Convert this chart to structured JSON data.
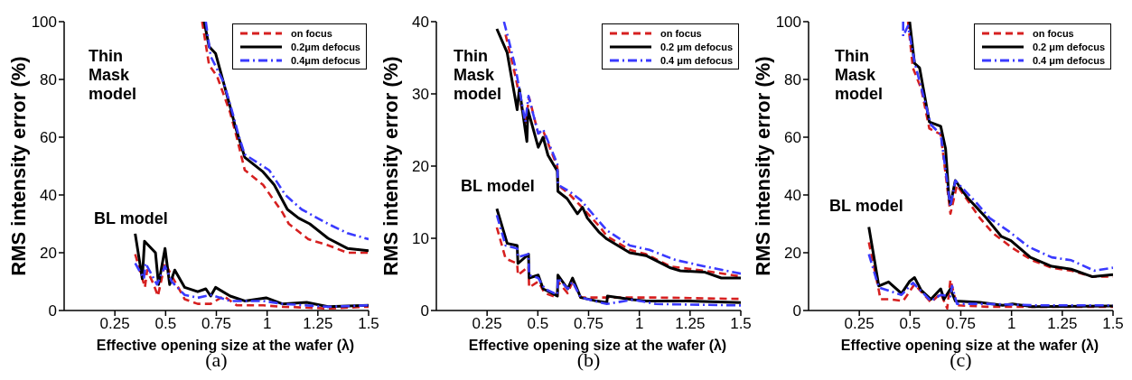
{
  "chart_data": [
    {
      "type": "line",
      "xlabel": "Effective opening size at the wafer (λ)",
      "ylabel": "RMS intensity error (%)",
      "xlim": [
        0,
        1.5
      ],
      "xticks": [
        0.25,
        0.5,
        0.75,
        1,
        1.25,
        1.5
      ],
      "ylim": [
        0,
        100
      ],
      "yticks": [
        0,
        20,
        40,
        60,
        80,
        100
      ],
      "legend": "top right",
      "annotations": [
        "Thin\nMask\nmodel",
        "BL model",
        "(a)"
      ],
      "series": [
        {
          "name": "on focus",
          "color": "#d62020",
          "line_style": "dashed",
          "x": [
            0.68,
            0.714,
            0.754,
            0.818,
            0.85,
            0.89,
            0.98,
            1.075,
            1.107,
            1.203,
            1.3,
            1.395,
            1.5
          ],
          "values": [
            100,
            85,
            81,
            68.5,
            60,
            48.6,
            43.5,
            34,
            30,
            24.7,
            22.6,
            20,
            20
          ]
        },
        {
          "name": "0.2μm defocus",
          "color": "#000000",
          "line_style": "solid",
          "x": [
            0.69,
            0.714,
            0.746,
            0.818,
            0.842,
            0.89,
            0.98,
            1.035,
            1.1,
            1.155,
            1.21,
            1.3,
            1.395,
            1.5
          ],
          "values": [
            100,
            91.4,
            89,
            70.5,
            64,
            53,
            48,
            43.5,
            35,
            32,
            30,
            25,
            21.5,
            20.7
          ]
        },
        {
          "name": "0.4μm defocus",
          "color": "#3a3aff",
          "line_style": "dashdot",
          "x": [
            0.698,
            0.722,
            0.786,
            0.834,
            0.858,
            0.89,
            1.01,
            1.09,
            1.17,
            1.3,
            1.395,
            1.5
          ],
          "values": [
            100,
            88,
            79,
            67.4,
            61,
            54,
            48.6,
            40,
            35,
            30,
            26.8,
            24.7
          ]
        },
        {
          "color": "#d62020",
          "line_style": "dashed",
          "x": [
            0.35,
            0.398,
            0.409,
            0.441,
            0.462,
            0.497,
            0.538,
            0.594,
            0.658,
            0.722,
            0.786,
            0.85,
            0.98,
            1.075,
            1.3,
            1.5
          ],
          "values": [
            19.5,
            8,
            14,
            9,
            5,
            16.4,
            11,
            3.9,
            2.3,
            2.3,
            5,
            1.8,
            1.8,
            1.3,
            0.7,
            1.3
          ]
        },
        {
          "color": "#000000",
          "line_style": "solid",
          "x": [
            0.35,
            0.385,
            0.396,
            0.45,
            0.465,
            0.497,
            0.52,
            0.545,
            0.594,
            0.658,
            0.698,
            0.722,
            0.746,
            0.818,
            0.89,
            0.995,
            1.075,
            1.195,
            1.3,
            1.5
          ],
          "values": [
            26.6,
            11,
            24,
            20,
            9,
            21.5,
            9,
            14,
            8,
            6.5,
            7.5,
            5,
            8,
            5,
            3.3,
            4.4,
            2.3,
            2.8,
            1.3,
            1.8
          ]
        },
        {
          "color": "#3a3aff",
          "line_style": "dashdot",
          "x": [
            0.35,
            0.393,
            0.401,
            0.457,
            0.497,
            0.53,
            0.594,
            0.658,
            0.722,
            0.818,
            0.98,
            1.075,
            1.3,
            1.5
          ],
          "values": [
            16.4,
            11,
            16.4,
            9,
            15.3,
            10,
            5.4,
            4.4,
            5.4,
            3.3,
            3.3,
            2.3,
            1.3,
            1.8
          ]
        }
      ]
    },
    {
      "type": "line",
      "xlabel": "Effective opening size at the wafer (λ)",
      "ylabel": "RMS intensity error (%)",
      "xlim": [
        0,
        1.5
      ],
      "xticks": [
        0.25,
        0.5,
        0.75,
        1,
        1.25,
        1.5
      ],
      "ylim": [
        0,
        40
      ],
      "yticks": [
        0,
        10,
        20,
        30,
        40
      ],
      "legend": "top right",
      "annotations": [
        "Thin\nMask\nmodel",
        "BL model",
        "(b)"
      ],
      "series": [
        {
          "name": "on focus",
          "color": "#d62020",
          "line_style": "dashed",
          "x": [
            0.341,
            0.39,
            0.414,
            0.438,
            0.457,
            0.502,
            0.526,
            0.596,
            0.599,
            0.655,
            0.711,
            0.808,
            0.84,
            0.953,
            1.033,
            1.154,
            1.323,
            1.5
          ],
          "values": [
            38.2,
            32.4,
            29,
            25.7,
            29.5,
            24.5,
            24.9,
            19.9,
            17.4,
            16.1,
            14.5,
            11.5,
            10.3,
            8.4,
            7.8,
            6.1,
            5.5,
            4.7
          ]
        },
        {
          "name": "0.2 μm defocus",
          "color": "#000000",
          "line_style": "solid",
          "x": [
            0.298,
            0.349,
            0.398,
            0.409,
            0.446,
            0.451,
            0.502,
            0.526,
            0.55,
            0.596,
            0.599,
            0.644,
            0.695,
            0.72,
            0.744,
            0.8,
            0.84,
            0.953,
            1.033,
            1.154,
            1.202,
            1.323,
            1.404,
            1.5
          ],
          "values": [
            39,
            35.7,
            27.8,
            30.7,
            23.4,
            27.8,
            22.6,
            24,
            21.5,
            19.3,
            16.5,
            15.5,
            13.4,
            14.3,
            12.8,
            10.9,
            9.9,
            8,
            7.6,
            5.9,
            5.5,
            5.3,
            4.5,
            4.5
          ]
        },
        {
          "name": "0.4 μm defocus",
          "color": "#3a3aff",
          "line_style": "dashdot",
          "x": [
            0.333,
            0.357,
            0.39,
            0.406,
            0.438,
            0.454,
            0.502,
            0.526,
            0.596,
            0.599,
            0.655,
            0.711,
            0.84,
            0.953,
            1.049,
            1.178,
            1.323,
            1.5
          ],
          "values": [
            40,
            37.4,
            33.6,
            31.1,
            26.1,
            29.7,
            24.5,
            25.1,
            20.3,
            17.4,
            16.5,
            15.3,
            11.1,
            9,
            8.4,
            7,
            6.1,
            5.1
          ]
        },
        {
          "color": "#d62020",
          "line_style": "dashed",
          "x": [
            0.298,
            0.341,
            0.398,
            0.402,
            0.454,
            0.457,
            0.502,
            0.534,
            0.596,
            0.599,
            0.647,
            0.671,
            0.711,
            0.84,
            1.082,
            1.5
          ],
          "values": [
            11.5,
            7.2,
            6.5,
            4.9,
            6.1,
            3.2,
            4,
            2.4,
            1.8,
            4,
            2.4,
            4,
            1.8,
            1.8,
            1.8,
            1.6
          ]
        },
        {
          "color": "#000000",
          "line_style": "solid",
          "x": [
            0.298,
            0.349,
            0.398,
            0.402,
            0.454,
            0.457,
            0.502,
            0.526,
            0.596,
            0.599,
            0.647,
            0.671,
            0.711,
            0.792,
            0.84,
            0.843,
            0.969,
            1.033,
            1.243,
            1.5
          ],
          "values": [
            14.1,
            9.3,
            9,
            6.5,
            7.8,
            4.5,
            4.9,
            3,
            2,
            4.9,
            3,
            4.5,
            1.8,
            1.3,
            1.1,
            2,
            1.5,
            1.3,
            1.3,
            1.1
          ]
        },
        {
          "color": "#3a3aff",
          "line_style": "dashdot",
          "x": [
            0.298,
            0.341,
            0.398,
            0.402,
            0.454,
            0.457,
            0.502,
            0.534,
            0.596,
            0.599,
            0.647,
            0.671,
            0.711,
            0.84,
            0.969,
            1.082,
            1.5
          ],
          "values": [
            13.2,
            9,
            8.6,
            7.4,
            7.8,
            4.9,
            4.5,
            3,
            2.2,
            4.5,
            3,
            4,
            1.8,
            0.9,
            1.5,
            0.9,
            0.7
          ]
        }
      ]
    },
    {
      "type": "line",
      "xlabel": "Effective opening size at the wafer (λ)",
      "ylabel": "RMS intensity error (%)",
      "xlim": [
        0,
        1.5
      ],
      "xticks": [
        0.25,
        0.5,
        0.75,
        1,
        1.25,
        1.5
      ],
      "ylim": [
        0,
        100
      ],
      "yticks": [
        0,
        20,
        40,
        60,
        80,
        100
      ],
      "legend": "top right",
      "annotations": [
        "Thin\nMask\nmodel",
        "BL model",
        "(c)"
      ],
      "series": [
        {
          "name": "on focus",
          "color": "#d62020",
          "line_style": "dashed",
          "x": [
            0.49,
            0.514,
            0.555,
            0.595,
            0.651,
            0.699,
            0.731,
            0.844,
            0.908,
            1.005,
            1.101,
            1.198,
            1.294,
            1.399,
            1.5
          ],
          "values": [
            100,
            84,
            76.8,
            63,
            61,
            33.5,
            43.4,
            32,
            26.8,
            21.6,
            17.4,
            14.8,
            13.8,
            11.7,
            11.7
          ]
        },
        {
          "name": "0.2 μm defocus",
          "color": "#000000",
          "line_style": "solid",
          "x": [
            0.498,
            0.522,
            0.547,
            0.595,
            0.651,
            0.675,
            0.691,
            0.699,
            0.723,
            0.78,
            0.876,
            0.949,
            0.997,
            1.093,
            1.198,
            1.294,
            1.399,
            1.5
          ],
          "values": [
            100,
            85.6,
            84,
            65.3,
            63.8,
            56,
            39.8,
            36.7,
            45,
            39.3,
            32,
            25.7,
            24.2,
            18.4,
            15.3,
            14.3,
            11.7,
            12.4
          ]
        },
        {
          "name": "0.4 μm defocus",
          "color": "#3a3aff",
          "line_style": "dashdot",
          "x": [
            0.466,
            0.466,
            0.49,
            0.522,
            0.603,
            0.651,
            0.699,
            0.723,
            0.828,
            0.892,
            0.989,
            1.085,
            1.198,
            1.294,
            1.407,
            1.5
          ],
          "values": [
            100,
            95,
            98.6,
            86,
            64.3,
            61,
            36,
            45,
            37.2,
            32,
            27.3,
            22,
            18.4,
            17.4,
            13.8,
            14.8
          ]
        },
        {
          "color": "#d62020",
          "line_style": "dashed",
          "x": [
            0.297,
            0.346,
            0.354,
            0.394,
            0.466,
            0.522,
            0.603,
            0.651,
            0.683,
            0.699,
            0.731,
            0.876,
            1.198,
            1.5
          ],
          "values": [
            23.6,
            7,
            3.9,
            3.9,
            3.3,
            9.1,
            2.8,
            5.9,
            0.7,
            10.6,
            1.8,
            1.3,
            1.3,
            1.3
          ]
        },
        {
          "color": "#000000",
          "line_style": "solid",
          "x": [
            0.297,
            0.346,
            0.394,
            0.458,
            0.498,
            0.522,
            0.555,
            0.603,
            0.651,
            0.667,
            0.699,
            0.723,
            0.844,
            0.957,
            1.005,
            1.101,
            1.5
          ],
          "values": [
            28.9,
            8.5,
            9.9,
            5.9,
            10.1,
            11.4,
            7,
            3.9,
            7.5,
            3.9,
            7.5,
            3.3,
            2.8,
            1.8,
            2.3,
            1.3,
            1.6
          ]
        },
        {
          "color": "#3a3aff",
          "line_style": "dashdot",
          "x": [
            0.297,
            0.346,
            0.458,
            0.514,
            0.603,
            0.651,
            0.699,
            0.707,
            0.731,
            0.876,
            1.117,
            1.5
          ],
          "values": [
            19.5,
            8,
            5.4,
            9.6,
            3.3,
            5.4,
            4.9,
            8.5,
            2.3,
            2.3,
            1.8,
            1.8
          ]
        }
      ]
    }
  ]
}
